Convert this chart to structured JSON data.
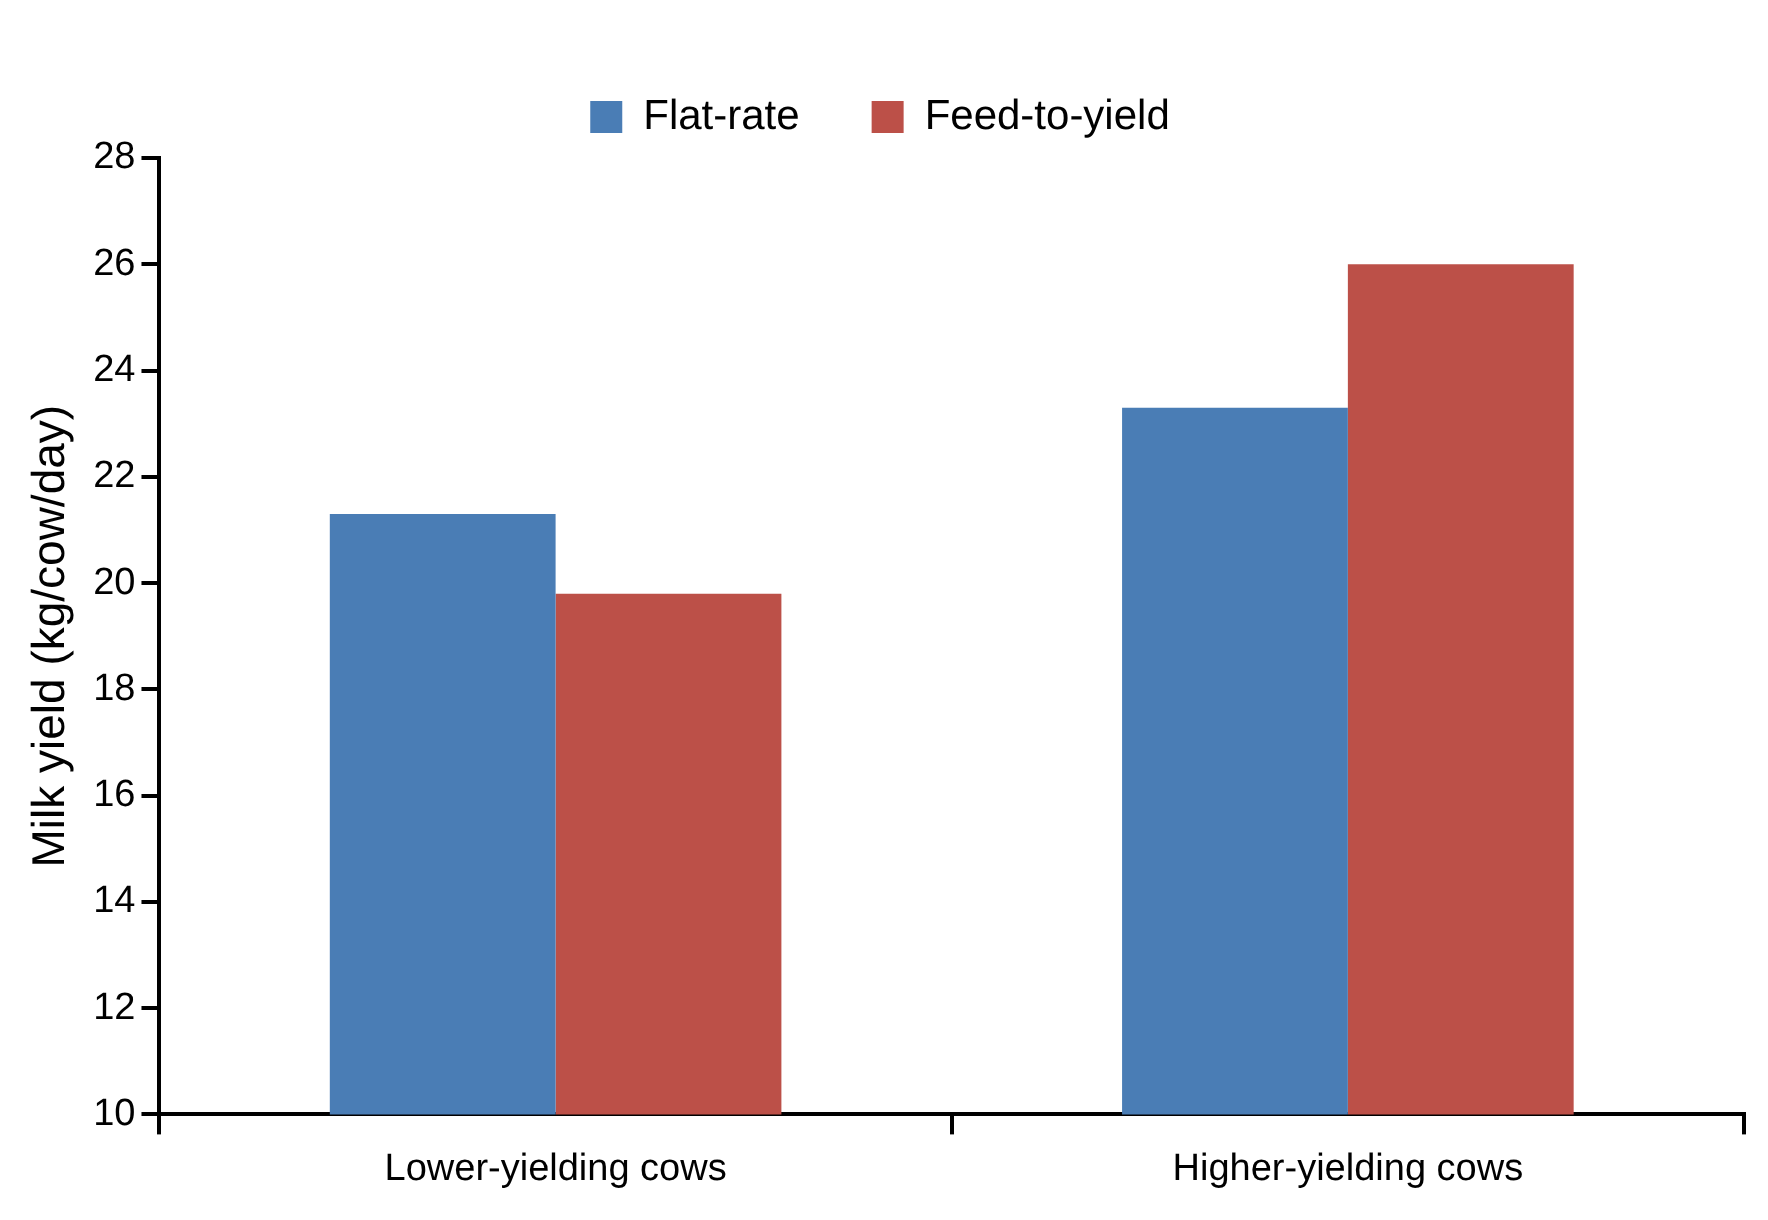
{
  "chart_data": {
    "type": "bar",
    "ylabel": "Milk yield (kg/cow/day)",
    "categories": [
      "Lower-yielding cows",
      "Higher-yielding cows"
    ],
    "series": [
      {
        "name": "Flat-rate",
        "color": "#4a7db5",
        "values": [
          21.3,
          23.3
        ]
      },
      {
        "name": "Feed-to-yield",
        "color": "#bc5048",
        "values": [
          19.8,
          26.0
        ]
      }
    ],
    "ylim": [
      10,
      28
    ],
    "yticks": [
      10,
      12,
      14,
      16,
      18,
      20,
      22,
      24,
      26,
      28
    ],
    "grid": false,
    "legend": "top"
  }
}
